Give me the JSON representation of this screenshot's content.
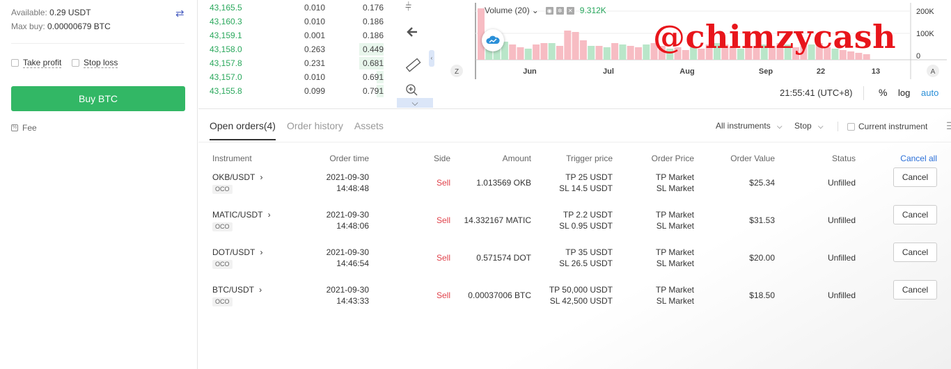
{
  "left": {
    "available_label": "Available:",
    "available_value": "0.29 USDT",
    "maxbuy_label": "Max buy:",
    "maxbuy_value": "0.00000679 BTC",
    "take_profit": "Take profit",
    "stop_loss": "Stop loss",
    "buy_button": "Buy BTC",
    "fee": "Fee",
    "swap_icon": "swap-icon"
  },
  "orderbook": [
    {
      "price": "43,165.5",
      "amount": "0.010",
      "total": "0.176",
      "depth": 0.0
    },
    {
      "price": "43,160.3",
      "amount": "0.010",
      "total": "0.186",
      "depth": 0.0
    },
    {
      "price": "43,159.1",
      "amount": "0.001",
      "total": "0.186",
      "depth": 0.0
    },
    {
      "price": "43,158.0",
      "amount": "0.263",
      "total": "0.449",
      "depth": 0.7
    },
    {
      "price": "43,157.8",
      "amount": "0.231",
      "total": "0.681",
      "depth": 0.7
    },
    {
      "price": "43,157.0",
      "amount": "0.010",
      "total": "0.691",
      "depth": 0.2
    },
    {
      "price": "43,155.8",
      "amount": "0.099",
      "total": "0.791",
      "depth": 0.2
    }
  ],
  "chart": {
    "volume_label": "Volume (20)",
    "volume_value": "9.312K",
    "watermark": "@chimzycash",
    "y_ticks": [
      "200K",
      "100K",
      "0"
    ],
    "x_ticks": [
      "Jun",
      "Jul",
      "Aug",
      "Sep",
      "22",
      "13"
    ],
    "z_button": "Z",
    "a_button": "A",
    "time": "21:55:41 (UTC+8)",
    "percent": "%",
    "log": "log",
    "auto": "auto",
    "colors": {
      "up": "#b9e6c9",
      "down": "#f7bcc3"
    }
  },
  "orders": {
    "tabs": [
      "Open orders(4)",
      "Order history",
      "Assets"
    ],
    "filter_instruments": "All instruments",
    "filter_type": "Stop",
    "current_instrument": "Current instrument",
    "headers": {
      "instrument": "Instrument",
      "order_time": "Order time",
      "side": "Side",
      "amount": "Amount",
      "trigger_price": "Trigger price",
      "order_price": "Order Price",
      "order_value": "Order Value",
      "status": "Status",
      "cancel_all": "Cancel all"
    },
    "rows": [
      {
        "instrument": "OKB/USDT",
        "tag": "OCO",
        "date": "2021-09-30",
        "time": "14:48:48",
        "side": "Sell",
        "amount": "1.013569 OKB",
        "tp": "TP 25 USDT",
        "sl": "SL 14.5 USDT",
        "tp_price": "TP Market",
        "sl_price": "SL Market",
        "value": "$25.34",
        "status": "Unfilled",
        "cancel": "Cancel"
      },
      {
        "instrument": "MATIC/USDT",
        "tag": "OCO",
        "date": "2021-09-30",
        "time": "14:48:06",
        "side": "Sell",
        "amount": "14.332167 MATIC",
        "tp": "TP 2.2 USDT",
        "sl": "SL 0.95 USDT",
        "tp_price": "TP Market",
        "sl_price": "SL Market",
        "value": "$31.53",
        "status": "Unfilled",
        "cancel": "Cancel"
      },
      {
        "instrument": "DOT/USDT",
        "tag": "OCO",
        "date": "2021-09-30",
        "time": "14:46:54",
        "side": "Sell",
        "amount": "0.571574 DOT",
        "tp": "TP 35 USDT",
        "sl": "SL 26.5 USDT",
        "tp_price": "TP Market",
        "sl_price": "SL Market",
        "value": "$20.00",
        "status": "Unfilled",
        "cancel": "Cancel"
      },
      {
        "instrument": "BTC/USDT",
        "tag": "OCO",
        "date": "2021-09-30",
        "time": "14:43:33",
        "side": "Sell",
        "amount": "0.00037006 BTC",
        "tp": "TP 50,000 USDT",
        "sl": "SL 42,500 USDT",
        "tp_price": "TP Market",
        "sl_price": "SL Market",
        "value": "$18.50",
        "status": "Unfilled",
        "cancel": "Cancel"
      }
    ]
  }
}
